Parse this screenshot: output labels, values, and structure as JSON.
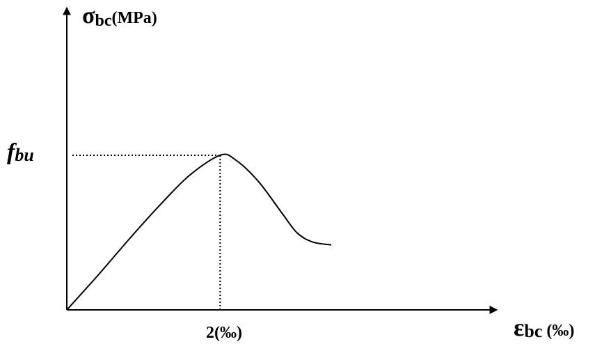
{
  "chart_data": {
    "type": "line",
    "title": "",
    "y_axis": {
      "symbol": "σ",
      "subscript": "bc",
      "unit": "(MPa)"
    },
    "x_axis": {
      "symbol": "ε",
      "subscript": "bc",
      "unit": " (‰)"
    },
    "peak": {
      "y_label": "f",
      "y_label_subscript": "bu",
      "x_label": "2(‰)",
      "x": 2,
      "y": 1
    },
    "series": [
      {
        "x": [
          0,
          0.4,
          0.8,
          1.2,
          1.6,
          2.0,
          2.2,
          2.5,
          2.8,
          3.0,
          3.2,
          3.45
        ],
        "y": [
          0,
          0.22,
          0.45,
          0.67,
          0.87,
          1.0,
          0.97,
          0.83,
          0.63,
          0.5,
          0.44,
          0.42
        ]
      }
    ],
    "xlim": [
      0,
      5.6
    ],
    "ylim": [
      0,
      1.95
    ],
    "grid": false,
    "legend": "none",
    "colors": {
      "lines": "#000000",
      "text": "#000000",
      "background": "#ffffff"
    }
  }
}
